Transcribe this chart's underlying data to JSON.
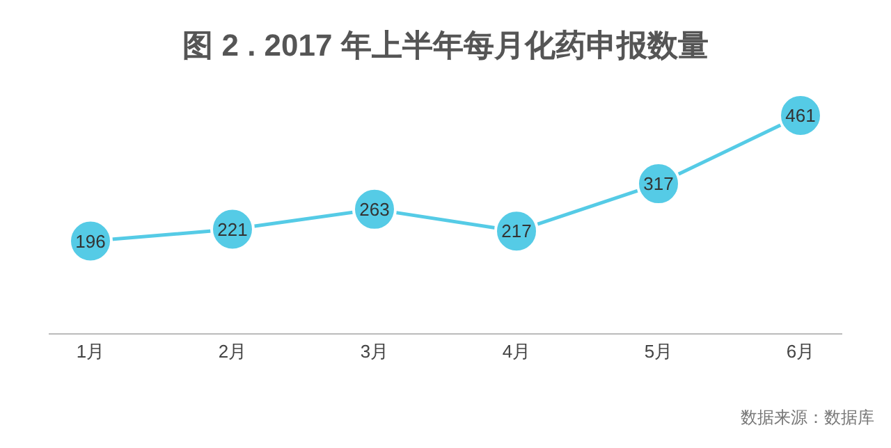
{
  "chart_data": {
    "type": "line",
    "title": "图 2 . 2017 年上半年每月化药申报数量",
    "categories": [
      "1月",
      "2月",
      "3月",
      "4月",
      "5月",
      "6月"
    ],
    "series": [
      {
        "color": "#55cbe6",
        "values": [
          196,
          221,
          263,
          217,
          317,
          461
        ]
      }
    ],
    "data_labels": true,
    "marker": "circle",
    "grid": false,
    "tick_labels": "x",
    "annotations": [
      "数据来源：数据库"
    ]
  }
}
